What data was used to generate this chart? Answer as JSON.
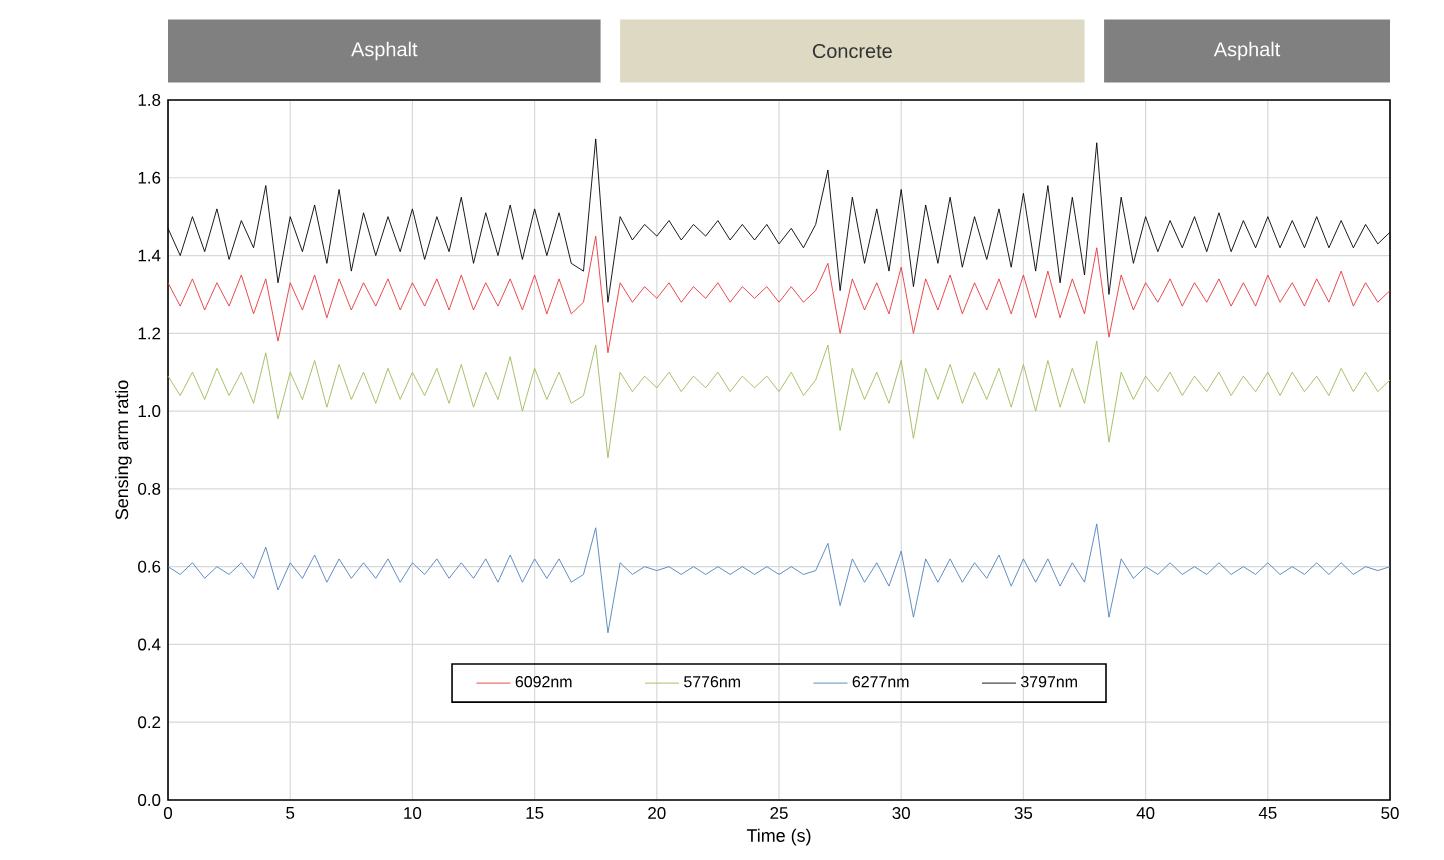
{
  "chart_data": {
    "type": "line",
    "xlabel": "Time (s)",
    "ylabel": "Sensing arm ratio",
    "x": [
      0,
      0.5,
      1,
      1.5,
      2,
      2.5,
      3,
      3.5,
      4,
      4.5,
      5,
      5.5,
      6,
      6.5,
      7,
      7.5,
      8,
      8.5,
      9,
      9.5,
      10,
      10.5,
      11,
      11.5,
      12,
      12.5,
      13,
      13.5,
      14,
      14.5,
      15,
      15.5,
      16,
      16.5,
      17,
      17.5,
      18,
      18.5,
      19,
      19.5,
      20,
      20.5,
      21,
      21.5,
      22,
      22.5,
      23,
      23.5,
      24,
      24.5,
      25,
      25.5,
      26,
      26.5,
      27,
      27.5,
      28,
      28.5,
      29,
      29.5,
      30,
      30.5,
      31,
      31.5,
      32,
      32.5,
      33,
      33.5,
      34,
      34.5,
      35,
      35.5,
      36,
      36.5,
      37,
      37.5,
      38,
      38.5,
      39,
      39.5,
      40,
      40.5,
      41,
      41.5,
      42,
      42.5,
      43,
      43.5,
      44,
      44.5,
      45,
      45.5,
      46,
      46.5,
      47,
      47.5,
      48,
      48.5,
      49,
      49.5,
      50
    ],
    "series": [
      {
        "name": "6092nm",
        "color": "#e8363a",
        "values": [
          1.33,
          1.27,
          1.34,
          1.26,
          1.33,
          1.27,
          1.35,
          1.25,
          1.34,
          1.18,
          1.33,
          1.26,
          1.35,
          1.24,
          1.34,
          1.26,
          1.33,
          1.27,
          1.34,
          1.26,
          1.33,
          1.27,
          1.34,
          1.26,
          1.35,
          1.26,
          1.33,
          1.27,
          1.34,
          1.26,
          1.35,
          1.25,
          1.34,
          1.25,
          1.28,
          1.45,
          1.15,
          1.33,
          1.28,
          1.32,
          1.29,
          1.33,
          1.28,
          1.32,
          1.29,
          1.33,
          1.28,
          1.32,
          1.29,
          1.32,
          1.28,
          1.32,
          1.28,
          1.31,
          1.38,
          1.2,
          1.34,
          1.26,
          1.33,
          1.25,
          1.37,
          1.2,
          1.34,
          1.26,
          1.35,
          1.25,
          1.33,
          1.26,
          1.34,
          1.25,
          1.35,
          1.24,
          1.36,
          1.24,
          1.34,
          1.25,
          1.42,
          1.19,
          1.35,
          1.26,
          1.33,
          1.28,
          1.34,
          1.27,
          1.33,
          1.28,
          1.34,
          1.27,
          1.33,
          1.27,
          1.35,
          1.28,
          1.33,
          1.27,
          1.34,
          1.28,
          1.36,
          1.27,
          1.33,
          1.28,
          1.31
        ]
      },
      {
        "name": "5776nm",
        "color": "#9bbb59",
        "values": [
          1.09,
          1.04,
          1.1,
          1.03,
          1.11,
          1.04,
          1.1,
          1.02,
          1.15,
          0.98,
          1.1,
          1.03,
          1.13,
          1.01,
          1.12,
          1.03,
          1.1,
          1.02,
          1.11,
          1.03,
          1.1,
          1.04,
          1.11,
          1.02,
          1.12,
          1.01,
          1.1,
          1.03,
          1.14,
          1.0,
          1.11,
          1.03,
          1.1,
          1.02,
          1.04,
          1.17,
          0.88,
          1.1,
          1.05,
          1.09,
          1.06,
          1.1,
          1.05,
          1.09,
          1.06,
          1.1,
          1.05,
          1.09,
          1.06,
          1.09,
          1.05,
          1.1,
          1.04,
          1.08,
          1.17,
          0.95,
          1.11,
          1.03,
          1.1,
          1.02,
          1.13,
          0.93,
          1.11,
          1.03,
          1.12,
          1.02,
          1.1,
          1.03,
          1.11,
          1.01,
          1.12,
          1.0,
          1.13,
          1.01,
          1.11,
          1.02,
          1.18,
          0.92,
          1.1,
          1.03,
          1.09,
          1.05,
          1.1,
          1.04,
          1.09,
          1.05,
          1.1,
          1.04,
          1.09,
          1.05,
          1.1,
          1.04,
          1.1,
          1.05,
          1.09,
          1.04,
          1.11,
          1.05,
          1.1,
          1.05,
          1.08
        ]
      },
      {
        "name": "6277nm",
        "color": "#4f81bd",
        "values": [
          0.6,
          0.58,
          0.61,
          0.57,
          0.6,
          0.58,
          0.61,
          0.57,
          0.65,
          0.54,
          0.61,
          0.57,
          0.63,
          0.56,
          0.62,
          0.57,
          0.61,
          0.57,
          0.62,
          0.56,
          0.61,
          0.58,
          0.62,
          0.57,
          0.61,
          0.57,
          0.62,
          0.56,
          0.63,
          0.56,
          0.62,
          0.57,
          0.62,
          0.56,
          0.58,
          0.7,
          0.43,
          0.61,
          0.58,
          0.6,
          0.59,
          0.6,
          0.58,
          0.6,
          0.58,
          0.6,
          0.58,
          0.6,
          0.58,
          0.6,
          0.58,
          0.6,
          0.58,
          0.59,
          0.66,
          0.5,
          0.62,
          0.56,
          0.61,
          0.55,
          0.64,
          0.47,
          0.62,
          0.56,
          0.62,
          0.56,
          0.61,
          0.57,
          0.63,
          0.55,
          0.62,
          0.56,
          0.62,
          0.55,
          0.61,
          0.56,
          0.71,
          0.47,
          0.62,
          0.57,
          0.6,
          0.58,
          0.61,
          0.58,
          0.6,
          0.58,
          0.61,
          0.58,
          0.6,
          0.58,
          0.61,
          0.58,
          0.6,
          0.58,
          0.61,
          0.58,
          0.61,
          0.58,
          0.6,
          0.59,
          0.6
        ]
      },
      {
        "name": "3797nm",
        "color": "#000000",
        "values": [
          1.47,
          1.4,
          1.5,
          1.41,
          1.52,
          1.39,
          1.49,
          1.42,
          1.58,
          1.33,
          1.5,
          1.41,
          1.53,
          1.38,
          1.57,
          1.36,
          1.51,
          1.4,
          1.5,
          1.41,
          1.52,
          1.39,
          1.5,
          1.41,
          1.55,
          1.38,
          1.51,
          1.4,
          1.53,
          1.39,
          1.52,
          1.4,
          1.51,
          1.38,
          1.36,
          1.7,
          1.28,
          1.5,
          1.44,
          1.48,
          1.45,
          1.49,
          1.44,
          1.48,
          1.45,
          1.49,
          1.44,
          1.48,
          1.44,
          1.48,
          1.43,
          1.47,
          1.42,
          1.48,
          1.62,
          1.31,
          1.55,
          1.38,
          1.52,
          1.36,
          1.57,
          1.32,
          1.53,
          1.38,
          1.55,
          1.37,
          1.5,
          1.39,
          1.52,
          1.37,
          1.56,
          1.36,
          1.58,
          1.33,
          1.55,
          1.35,
          1.69,
          1.3,
          1.55,
          1.38,
          1.5,
          1.41,
          1.49,
          1.42,
          1.5,
          1.41,
          1.51,
          1.41,
          1.49,
          1.42,
          1.5,
          1.42,
          1.49,
          1.42,
          1.5,
          1.42,
          1.49,
          1.42,
          1.48,
          1.43,
          1.46
        ]
      }
    ],
    "xlim": [
      0,
      50
    ],
    "ylim": [
      0,
      1.8
    ],
    "xticks": [
      0,
      5,
      10,
      15,
      20,
      25,
      30,
      35,
      40,
      45,
      50
    ],
    "yticks": [
      {
        "value": 0,
        "label": "0.0"
      },
      {
        "value": 0.2,
        "label": "0.2"
      },
      {
        "value": 0.4,
        "label": "0.4"
      },
      {
        "value": 0.6,
        "label": "0.6"
      },
      {
        "value": 0.8,
        "label": "0.8"
      },
      {
        "value": 1.0,
        "label": "1.0"
      },
      {
        "value": 1.2,
        "label": "1.2"
      },
      {
        "value": 1.4,
        "label": "1.4"
      },
      {
        "value": 1.6,
        "label": "1.6"
      },
      {
        "value": 1.8,
        "label": "1.8"
      }
    ],
    "annotations": [
      "Asphalt",
      "Concrete",
      "Asphalt"
    ],
    "grid": true,
    "legend": "bottom",
    "marker": "none",
    "line_style": "solid"
  }
}
